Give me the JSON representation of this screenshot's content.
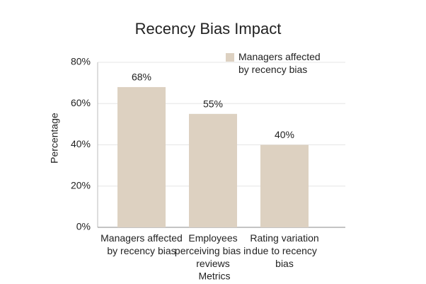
{
  "chart_data": {
    "type": "bar",
    "title": "Recency Bias Impact",
    "x_label": "Metrics",
    "y_label": "Percentage",
    "categories": [
      "Managers affected by recency bias",
      "Employees perceiving bias in reviews",
      "Rating variation due to recency bias"
    ],
    "series": [
      {
        "name": "Managers affected by recency bias",
        "color": "#ddd1c1",
        "values": [
          68,
          55,
          40
        ],
        "value_labels": [
          "68%",
          "55%",
          "40%"
        ]
      }
    ],
    "ylim": [
      0,
      80
    ],
    "yticks": [
      {
        "value": 0,
        "label": "0%"
      },
      {
        "value": 20,
        "label": "20%"
      },
      {
        "value": 40,
        "label": "40%"
      },
      {
        "value": 60,
        "label": "60%"
      },
      {
        "value": 80,
        "label": "80%"
      }
    ],
    "grid": true,
    "legend": "top-right"
  }
}
